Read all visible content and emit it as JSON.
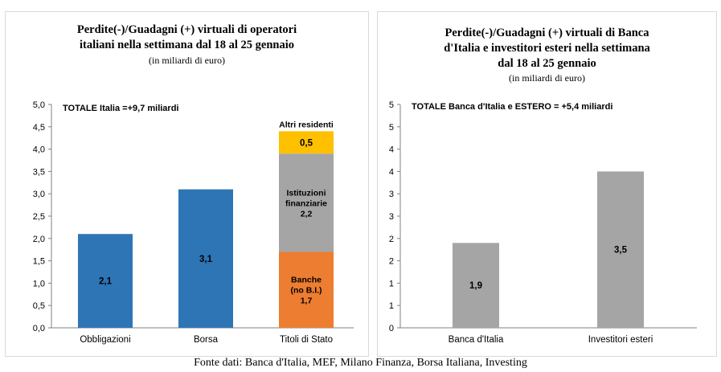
{
  "chart_data": [
    {
      "type": "bar",
      "stacked": true,
      "title_lines": [
        "Perdite(-)/Guadagni (+) virtuali di operatori",
        "italiani nella settimana dal 18 al 25 gennaio"
      ],
      "subtitle": "(in miliardi di euro)",
      "annotation": "TOTALE  Italia =+9,7 miliardi",
      "categories": [
        "Obbligazioni",
        "Borsa",
        "Titoli di Stato"
      ],
      "ylim": [
        0,
        5
      ],
      "yticks": [
        "0,0",
        "0,5",
        "1,0",
        "1,5",
        "2,0",
        "2,5",
        "3,0",
        "3,5",
        "4,0",
        "4,5",
        "5,0"
      ],
      "grid": false,
      "segments": [
        {
          "category": 0,
          "value": 2.1,
          "label_lines": [
            "2,1"
          ],
          "color": "#2e75b6"
        },
        {
          "category": 1,
          "value": 3.1,
          "label_lines": [
            "3,1"
          ],
          "color": "#2e75b6"
        },
        {
          "category": 2,
          "value": 1.7,
          "label_lines": [
            "Banche",
            "(no B.I.)",
            "1,7"
          ],
          "color": "#ed7d31"
        },
        {
          "category": 2,
          "value": 2.2,
          "label_lines": [
            "Istituzioni",
            "finanziarie",
            "2,2"
          ],
          "color": "#a5a5a5"
        },
        {
          "category": 2,
          "value": 0.5,
          "label_lines": [
            "0,5"
          ],
          "color": "#ffc000",
          "top_label": "Altri residenti"
        }
      ]
    },
    {
      "type": "bar",
      "title_lines": [
        "Perdite(-)/Guadagni (+)  virtuali di Banca",
        "d'Italia e investitori esteri  nella settimana",
        "dal 18 al 25 gennaio"
      ],
      "subtitle": "(in miliardi di euro)",
      "annotation": "TOTALE  Banca d'Italia e ESTERO = +5,4 miliardi",
      "categories": [
        "Banca d'Italia",
        "Investitori esteri"
      ],
      "ylim": [
        0,
        5
      ],
      "yticks": [
        "0",
        "1",
        "1",
        "2",
        "2",
        "3",
        "3",
        "4",
        "4",
        "5",
        "5"
      ],
      "grid": false,
      "segments": [
        {
          "category": 0,
          "value": 1.9,
          "label_lines": [
            "1,9"
          ],
          "color": "#a5a5a5"
        },
        {
          "category": 1,
          "value": 3.5,
          "label_lines": [
            "3,5"
          ],
          "color": "#a5a5a5"
        }
      ]
    }
  ],
  "source": "Fonte dati: Banca d'Italia, MEF, Milano Finanza, Borsa Italiana, Investing"
}
